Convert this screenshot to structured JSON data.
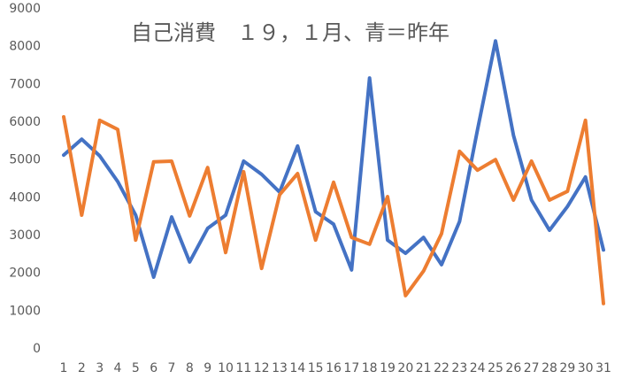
{
  "chart_data": {
    "type": "line",
    "title": "自己消費　１９，１月、青＝昨年",
    "categories": [
      1,
      2,
      3,
      4,
      5,
      6,
      7,
      8,
      9,
      10,
      11,
      12,
      13,
      14,
      15,
      16,
      17,
      18,
      19,
      20,
      21,
      22,
      23,
      24,
      25,
      26,
      27,
      28,
      29,
      30,
      31
    ],
    "series": [
      {
        "color": "#4472c4",
        "values": [
          5130,
          5550,
          5110,
          4430,
          3540,
          1900,
          3490,
          2300,
          3190,
          3540,
          4970,
          4620,
          4150,
          5370,
          3630,
          3300,
          2090,
          7170,
          2880,
          2530,
          2950,
          2230,
          3370,
          5800,
          8150,
          5650,
          3940,
          3140,
          3770,
          4550,
          2620
        ]
      },
      {
        "color": "#ed7d31",
        "values": [
          6140,
          3540,
          6050,
          5810,
          2880,
          4950,
          4970,
          3520,
          4800,
          2550,
          4690,
          2130,
          4080,
          4640,
          2880,
          4410,
          2950,
          2770,
          4030,
          1410,
          2060,
          3050,
          5230,
          4730,
          5010,
          3940,
          4970,
          3940,
          4170,
          6050,
          1200
        ]
      }
    ],
    "ylim": [
      0,
      9000
    ],
    "yticks": [
      0,
      1000,
      2000,
      3000,
      4000,
      5000,
      6000,
      7000,
      8000,
      9000
    ],
    "grid": false
  }
}
